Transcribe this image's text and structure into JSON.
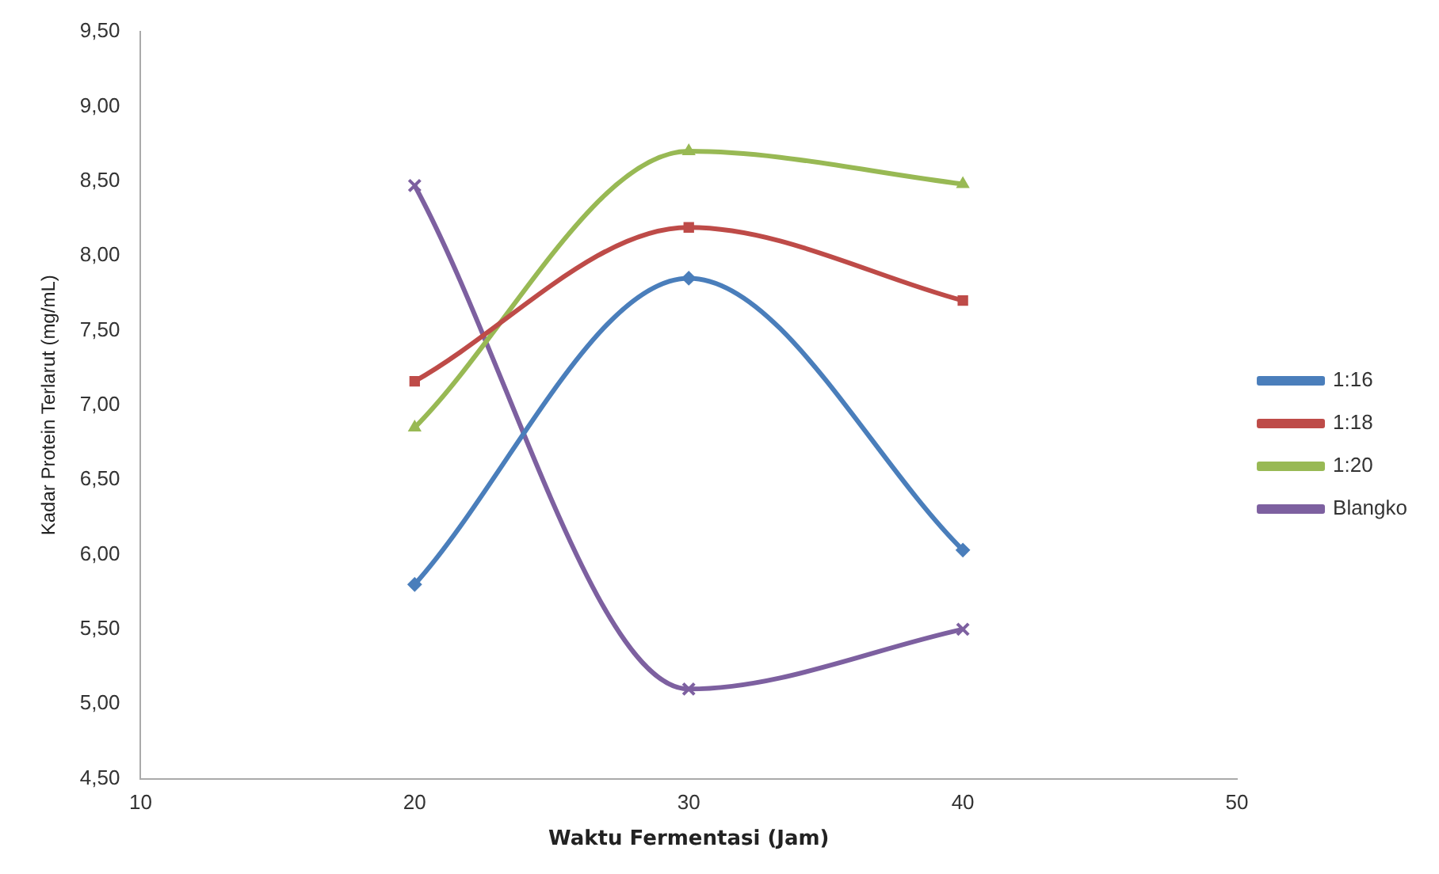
{
  "chart_data": {
    "type": "line",
    "xlabel": "Waktu Fermentasi (Jam)",
    "ylabel": "Kadar Protein Terlarut (mg/mL)",
    "x": [
      20,
      30,
      40
    ],
    "series": [
      {
        "name": "1:16",
        "color": "#4a7ebb",
        "marker": "diamond",
        "values": [
          5.8,
          7.85,
          6.03
        ]
      },
      {
        "name": "1:18",
        "color": "#be4b48",
        "marker": "square",
        "values": [
          7.16,
          8.19,
          7.7
        ]
      },
      {
        "name": "1:20",
        "color": "#98b954",
        "marker": "triangle",
        "values": [
          6.85,
          8.7,
          8.48
        ]
      },
      {
        "name": "Blangko",
        "color": "#7d60a0",
        "marker": "cross",
        "values": [
          8.47,
          5.1,
          5.5
        ]
      }
    ],
    "xlim": [
      10,
      50
    ],
    "xticks": [
      10,
      20,
      30,
      40,
      50
    ],
    "ylim": [
      4.5,
      9.5
    ],
    "yticks": [
      {
        "value": 4.5,
        "label": "4,50"
      },
      {
        "value": 5,
        "label": "5,00"
      },
      {
        "value": 5.5,
        "label": "5,50"
      },
      {
        "value": 6,
        "label": "6,00"
      },
      {
        "value": 6.5,
        "label": "6,50"
      },
      {
        "value": 7,
        "label": "7,00"
      },
      {
        "value": 7.5,
        "label": "7,50"
      },
      {
        "value": 8,
        "label": "8,00"
      },
      {
        "value": 8.5,
        "label": "8,50"
      },
      {
        "value": 9,
        "label": "9,00"
      },
      {
        "value": 9.5,
        "label": "9,50"
      }
    ],
    "grid": false,
    "legend": "right"
  }
}
